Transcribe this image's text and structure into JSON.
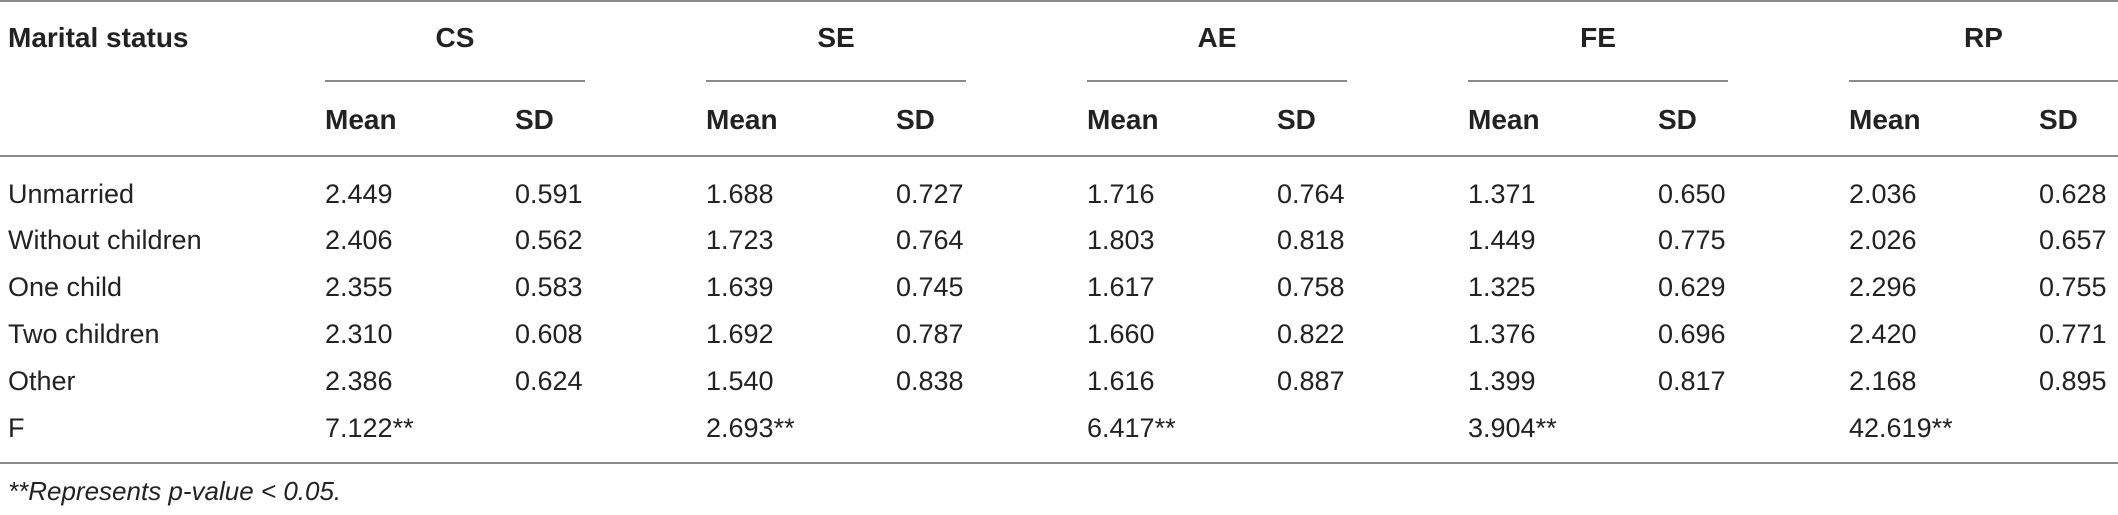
{
  "table": {
    "stub_header": "Marital status",
    "groups": [
      "CS",
      "SE",
      "AE",
      "FE",
      "RP"
    ],
    "sub_headers": [
      "Mean",
      "SD"
    ],
    "rows": [
      {
        "label": "Unmarried",
        "values": [
          "2.449",
          "0.591",
          "1.688",
          "0.727",
          "1.716",
          "0.764",
          "1.371",
          "0.650",
          "2.036",
          "0.628"
        ]
      },
      {
        "label": "Without children",
        "values": [
          "2.406",
          "0.562",
          "1.723",
          "0.764",
          "1.803",
          "0.818",
          "1.449",
          "0.775",
          "2.026",
          "0.657"
        ]
      },
      {
        "label": "One child",
        "values": [
          "2.355",
          "0.583",
          "1.639",
          "0.745",
          "1.617",
          "0.758",
          "1.325",
          "0.629",
          "2.296",
          "0.755"
        ]
      },
      {
        "label": "Two children",
        "values": [
          "2.310",
          "0.608",
          "1.692",
          "0.787",
          "1.660",
          "0.822",
          "1.376",
          "0.696",
          "2.420",
          "0.771"
        ]
      },
      {
        "label": "Other",
        "values": [
          "2.386",
          "0.624",
          "1.540",
          "0.838",
          "1.616",
          "0.887",
          "1.399",
          "0.817",
          "2.168",
          "0.895"
        ]
      },
      {
        "label": "F",
        "values": [
          "7.122**",
          "",
          "2.693**",
          "",
          "6.417**",
          "",
          "3.904**",
          "",
          "42.619**",
          ""
        ]
      }
    ],
    "footnote": "**Represents p-value < 0.05."
  }
}
